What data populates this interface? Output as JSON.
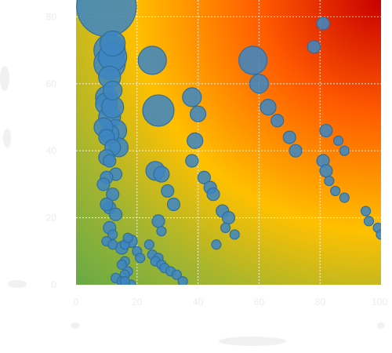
{
  "chart_data": {
    "type": "scatter",
    "title": "",
    "xlabel": "",
    "ylabel": "",
    "xlim": [
      0,
      100
    ],
    "ylim": [
      0,
      85
    ],
    "x_ticks": [
      0,
      20,
      40,
      60,
      80,
      100
    ],
    "y_ticks": [
      0,
      20,
      40,
      60,
      80
    ],
    "x_tick_labels": [
      "0",
      "20",
      "40",
      "60",
      "80",
      "100"
    ],
    "y_tick_labels": [
      "0",
      "20",
      "40",
      "60",
      "80"
    ],
    "grid": true,
    "background": "green-yellow-orange-red gradient increasing toward top-right",
    "colors": {
      "bubble_fill": "#3f86c0",
      "bubble_stroke": "#2f6e9e",
      "gradient_low": "#6aaa45",
      "gradient_mid": "#ffc000",
      "gradient_high": "#ff5a00",
      "gradient_top": "#c80000"
    },
    "series": [
      {
        "x": [
          10,
          11,
          12,
          11,
          12,
          11,
          10,
          12,
          10,
          11,
          12,
          13,
          14,
          11,
          9,
          10,
          12,
          10,
          11,
          13,
          10,
          9,
          12,
          11,
          10,
          13,
          11,
          12,
          10,
          12,
          15,
          18,
          16,
          17,
          20,
          21,
          16,
          15,
          17,
          16,
          13,
          15,
          18,
          16,
          25,
          27,
          26,
          28,
          30,
          32,
          27,
          28,
          24,
          25,
          27,
          26,
          28,
          29,
          31,
          33,
          35,
          38,
          40,
          39,
          38,
          42,
          44,
          45,
          48,
          50,
          49,
          52,
          46,
          58,
          60,
          63,
          66,
          70,
          72,
          81,
          82,
          83,
          85,
          88,
          95,
          96,
          99,
          100,
          78,
          81,
          82,
          86,
          88
        ],
        "y": [
          83,
          70,
          68,
          66,
          72,
          62,
          56,
          58,
          54,
          50,
          53,
          46,
          41,
          45,
          47,
          44,
          41,
          38,
          37,
          33,
          32,
          30,
          27,
          23,
          24,
          21,
          17,
          15,
          13,
          12,
          11,
          13,
          12,
          14,
          10,
          8,
          7,
          6,
          4,
          3,
          2,
          1,
          0,
          1,
          67,
          52,
          34,
          33,
          28,
          24,
          19,
          16,
          12,
          9,
          8,
          7,
          6,
          5,
          4,
          3,
          1,
          56,
          51,
          43,
          37,
          32,
          29,
          27,
          22,
          20,
          17,
          15,
          12,
          67,
          60,
          53,
          49,
          44,
          40,
          37,
          34,
          31,
          28,
          26,
          22,
          19,
          17,
          15,
          71,
          78,
          46,
          43,
          40
        ],
        "size": [
          18,
          9,
          8,
          9,
          7,
          6,
          6,
          5,
          6,
          6,
          6,
          6,
          5,
          5,
          5,
          4,
          4,
          4,
          3,
          3,
          3,
          3,
          3,
          3,
          3,
          3,
          3,
          2,
          2,
          2,
          3,
          3,
          2,
          2,
          2,
          2,
          2,
          2,
          2,
          2,
          2,
          2,
          2,
          2,
          8,
          9,
          5,
          4,
          3,
          3,
          3,
          2,
          2,
          2,
          2,
          2,
          2,
          2,
          2,
          2,
          2,
          5,
          4,
          4,
          3,
          3,
          3,
          3,
          3,
          3,
          2,
          2,
          2,
          8,
          5,
          4,
          3,
          3,
          3,
          3,
          3,
          2,
          2,
          2,
          2,
          2,
          2,
          2,
          3,
          3,
          3,
          2,
          2
        ]
      }
    ]
  }
}
